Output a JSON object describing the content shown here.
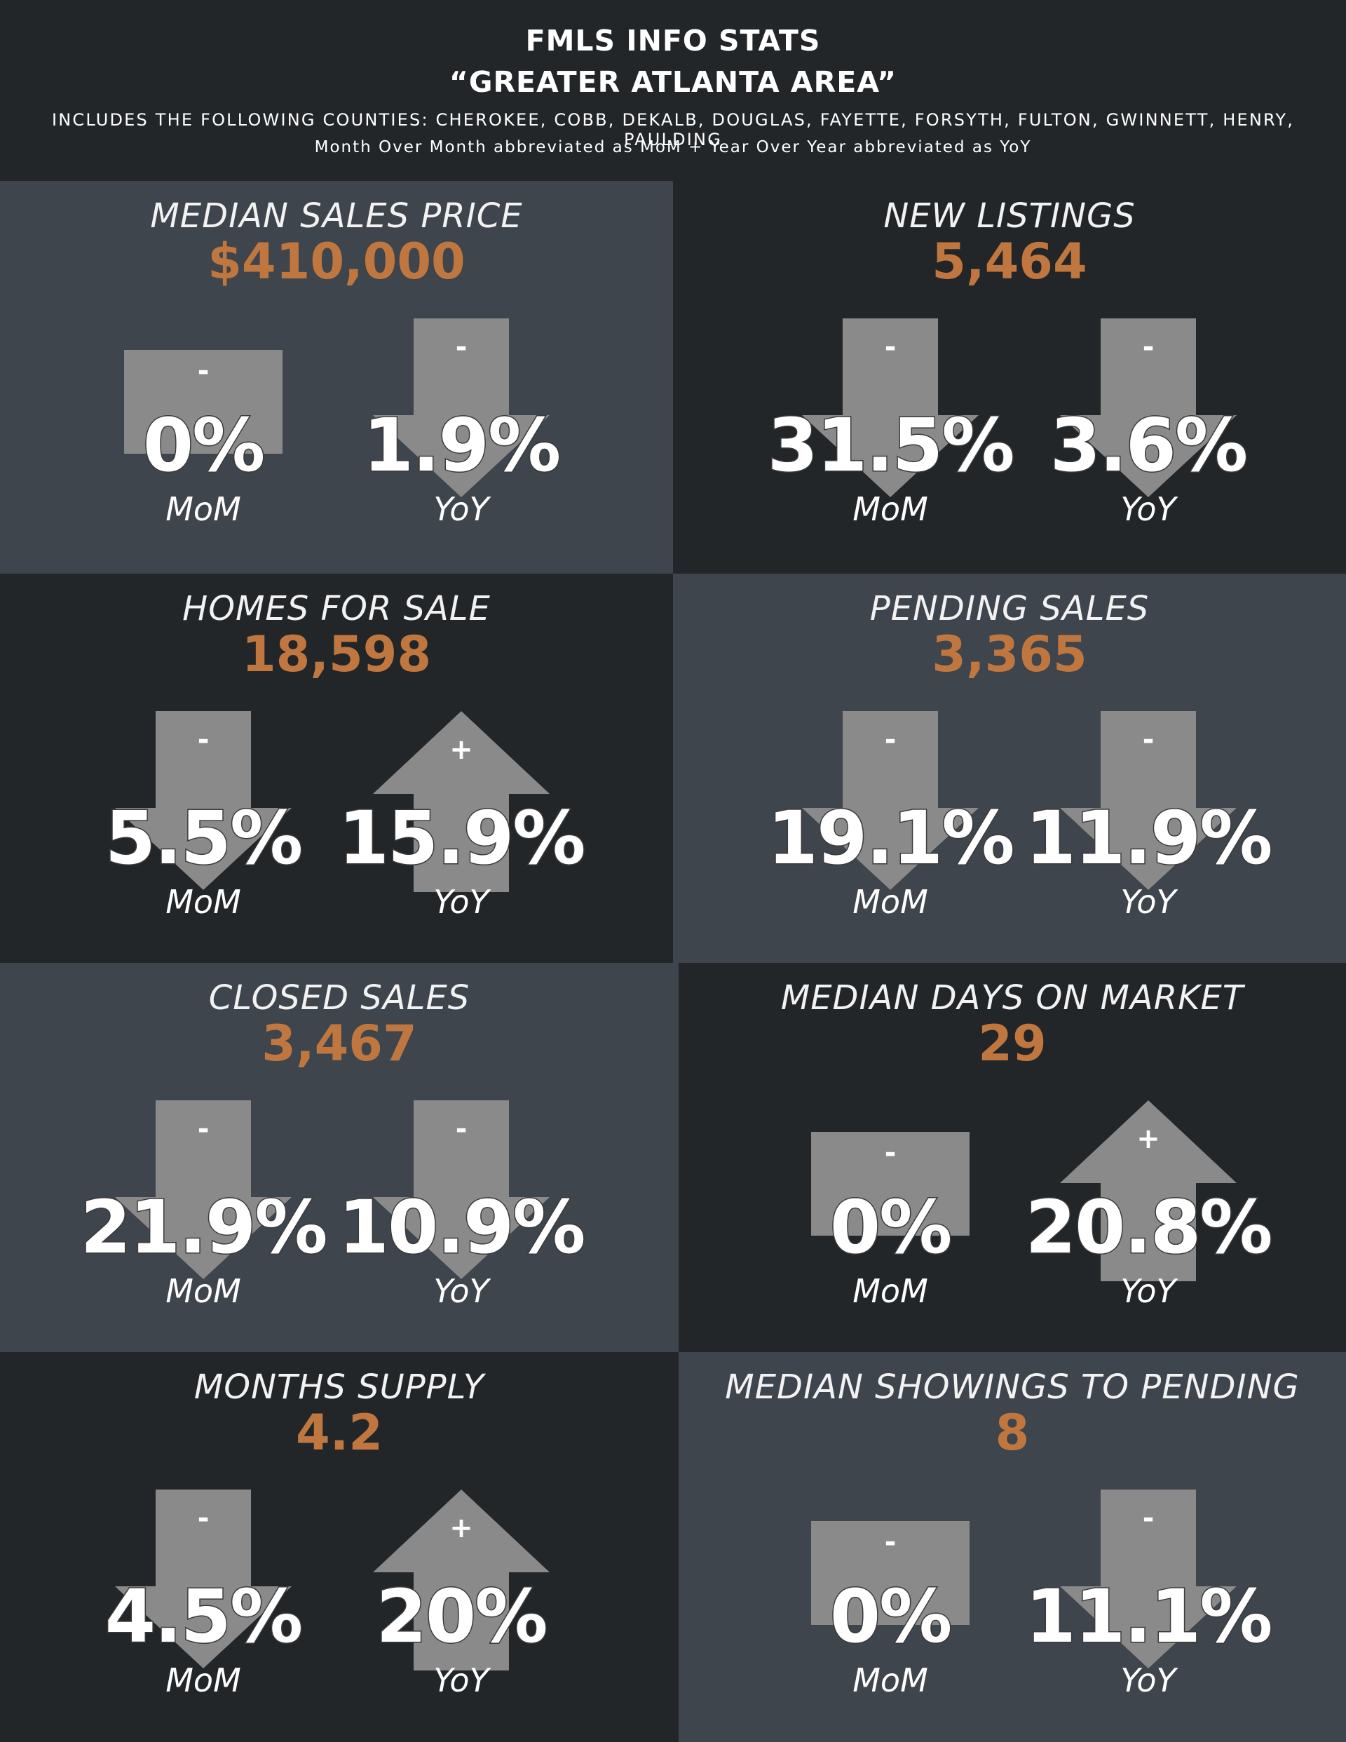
{
  "header": {
    "title": "FMLS INFO STATS",
    "subtitle": "“GREATER ATLANTA AREA”",
    "counties": "INCLUDES THE FOLLOWING COUNTIES: CHEROKEE, COBB, DEKALB, DOUGLAS, FAYETTE, FORSYTH, FULTON, GWINNETT, HENRY, PAULDING",
    "legend": "Month Over Month abbreviated as MoM + Year Over Year abbreviated as YoY"
  },
  "colors": {
    "panel_light": "#3e454c",
    "panel_dark": "#232629",
    "value_accent": "#c0773f",
    "shape_fill": "#8a8a8a"
  },
  "metrics": [
    {
      "label": "MEDIAN SALES PRICE",
      "value": "$410,000",
      "mom": {
        "sign": "-",
        "pct": "0%",
        "period": "MoM",
        "shape": "box"
      },
      "yoy": {
        "sign": "-",
        "pct": "1.9%",
        "period": "YoY",
        "shape": "arrow-down"
      }
    },
    {
      "label": "NEW LISTINGS",
      "value": "5,464",
      "mom": {
        "sign": "-",
        "pct": "31.5%",
        "period": "MoM",
        "shape": "arrow-down"
      },
      "yoy": {
        "sign": "-",
        "pct": "3.6%",
        "period": "YoY",
        "shape": "arrow-down"
      }
    },
    {
      "label": "HOMES FOR SALE",
      "value": "18,598",
      "mom": {
        "sign": "-",
        "pct": "5.5%",
        "period": "MoM",
        "shape": "arrow-down"
      },
      "yoy": {
        "sign": "+",
        "pct": "15.9%",
        "period": "YoY",
        "shape": "arrow-up"
      }
    },
    {
      "label": "PENDING SALES",
      "value": "3,365",
      "mom": {
        "sign": "-",
        "pct": "19.1%",
        "period": "MoM",
        "shape": "arrow-down"
      },
      "yoy": {
        "sign": "-",
        "pct": "11.9%",
        "period": "YoY",
        "shape": "arrow-down"
      }
    },
    {
      "label": "CLOSED SALES",
      "value": "3,467",
      "mom": {
        "sign": "-",
        "pct": "21.9%",
        "period": "MoM",
        "shape": "arrow-down"
      },
      "yoy": {
        "sign": "-",
        "pct": "10.9%",
        "period": "YoY",
        "shape": "arrow-down"
      }
    },
    {
      "label": "MEDIAN DAYS ON MARKET",
      "value": "29",
      "mom": {
        "sign": "-",
        "pct": "0%",
        "period": "MoM",
        "shape": "box"
      },
      "yoy": {
        "sign": "+",
        "pct": "20.8%",
        "period": "YoY",
        "shape": "arrow-up"
      }
    },
    {
      "label": "MONTHS SUPPLY",
      "value": "4.2",
      "mom": {
        "sign": "-",
        "pct": "4.5%",
        "period": "MoM",
        "shape": "arrow-down"
      },
      "yoy": {
        "sign": "+",
        "pct": "20%",
        "period": "YoY",
        "shape": "arrow-up"
      }
    },
    {
      "label": "MEDIAN SHOWINGS TO PENDING",
      "value": "8",
      "mom": {
        "sign": "-",
        "pct": "0%",
        "period": "MoM",
        "shape": "box"
      },
      "yoy": {
        "sign": "-",
        "pct": "11.1%",
        "period": "YoY",
        "shape": "arrow-down"
      }
    }
  ]
}
